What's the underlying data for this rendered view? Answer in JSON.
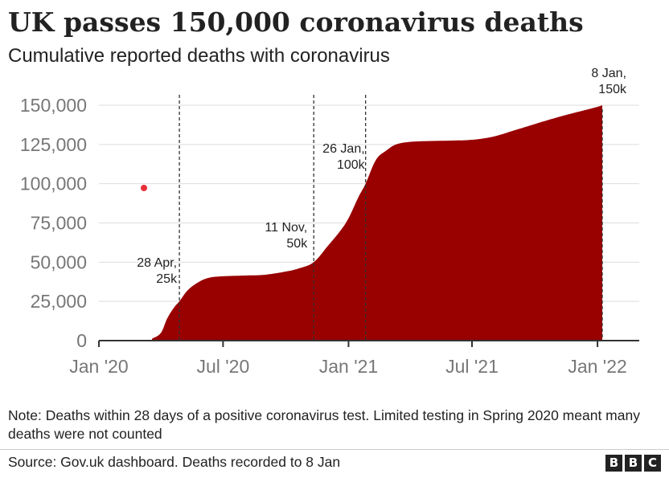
{
  "header": {
    "title": "UK passes 150,000 coronavirus deaths",
    "subtitle": "Cumulative reported deaths with coronavirus"
  },
  "footer": {
    "note": "Note: Deaths within 28 days of a positive coronavirus test. Limited testing in Spring 2020 meant many deaths were not counted",
    "source": "Source: Gov.uk dashboard. Deaths recorded to 8 Jan",
    "logo_letters": [
      "B",
      "B",
      "C"
    ]
  },
  "colors": {
    "area": "#990000",
    "grid": "#dddddd",
    "axis": "#333333",
    "tick_text": "#777777",
    "marker_dot": "#e8313a"
  },
  "chart_data": {
    "type": "area",
    "title": "UK passes 150,000 coronavirus deaths",
    "subtitle": "Cumulative reported deaths with coronavirus",
    "xlabel": "",
    "ylabel": "",
    "xlim": [
      "2020-01-01",
      "2022-01-08"
    ],
    "ylim": [
      0,
      150000
    ],
    "grid": true,
    "legend": "none",
    "x_ticks": [
      {
        "date": "2020-01-01",
        "label": "Jan '20"
      },
      {
        "date": "2020-07-01",
        "label": "Jul '20"
      },
      {
        "date": "2021-01-01",
        "label": "Jan '21"
      },
      {
        "date": "2021-07-01",
        "label": "Jul '21"
      },
      {
        "date": "2022-01-01",
        "label": "Jan '22"
      }
    ],
    "y_ticks": [
      {
        "value": 0,
        "label": "0"
      },
      {
        "value": 25000,
        "label": "25,000"
      },
      {
        "value": 50000,
        "label": "50,000"
      },
      {
        "value": 75000,
        "label": "75,000"
      },
      {
        "value": 100000,
        "label": "100,000"
      },
      {
        "value": 125000,
        "label": "125,000"
      },
      {
        "value": 150000,
        "label": "150,000"
      }
    ],
    "series": [
      {
        "x": [
          "2020-01-01",
          "2020-03-10",
          "2020-03-20",
          "2020-04-01",
          "2020-04-10",
          "2020-04-20",
          "2020-04-28",
          "2020-05-10",
          "2020-05-25",
          "2020-06-10",
          "2020-07-01",
          "2020-08-01",
          "2020-09-01",
          "2020-10-01",
          "2020-10-20",
          "2020-11-11",
          "2020-12-01",
          "2020-12-20",
          "2021-01-01",
          "2021-01-15",
          "2021-01-26",
          "2021-02-10",
          "2021-02-25",
          "2021-03-15",
          "2021-04-15",
          "2021-06-01",
          "2021-07-01",
          "2021-08-01",
          "2021-09-01",
          "2021-10-01",
          "2021-11-01",
          "2021-12-01",
          "2022-01-01",
          "2022-01-08"
        ],
        "y": [
          0,
          0,
          1500,
          5000,
          14000,
          21000,
          25000,
          32000,
          37000,
          40000,
          41000,
          41500,
          42000,
          44000,
          46000,
          50000,
          60000,
          70000,
          78000,
          91000,
          100000,
          115000,
          121000,
          125500,
          127000,
          127500,
          128000,
          130000,
          134000,
          138000,
          142000,
          145500,
          149000,
          150000
        ]
      }
    ],
    "annotations": [
      {
        "date": "2020-04-28",
        "lines": [
          "28 Apr,",
          "25k"
        ]
      },
      {
        "date": "2020-11-11",
        "lines": [
          "11 Nov,",
          "50k"
        ]
      },
      {
        "date": "2021-01-26",
        "lines": [
          "26 Jan,",
          "100k"
        ]
      },
      {
        "date": "2022-01-08",
        "lines": [
          "8 Jan,",
          "150k"
        ]
      }
    ]
  }
}
